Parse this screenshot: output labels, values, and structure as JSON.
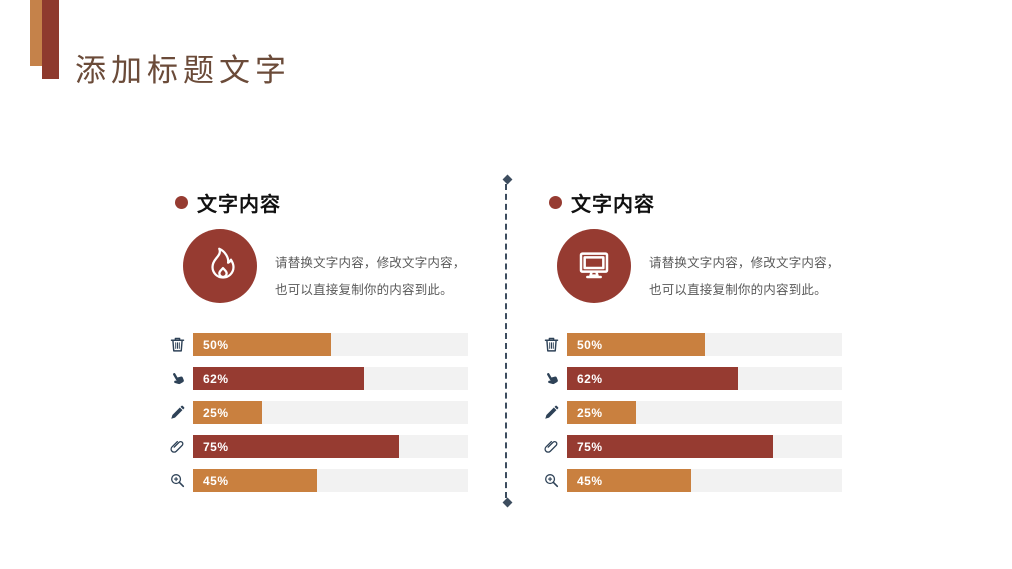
{
  "slide": {
    "title": "添加标题文字"
  },
  "colors": {
    "accent_orange": "#C9803F",
    "accent_dark_red": "#963B31",
    "title_brown": "#6B4B39",
    "bar_icon_slate": "#2E4257",
    "bar_track_gray": "#F2F2F2",
    "body_text_gray": "#595959",
    "deco_orange": "#C5824A",
    "deco_red": "#8E3A2E",
    "divider_slate": "#3D4D5F"
  },
  "columns": [
    {
      "heading": "文字内容",
      "circle_icon": "flame-icon",
      "body": "请替换文字内容，修改文字内容，也可以直接复制你的内容到此。",
      "bars": [
        {
          "icon": "trash-icon",
          "label": "50%",
          "value": 50,
          "color": "#C9803F"
        },
        {
          "icon": "hand-pointer-icon",
          "label": "62%",
          "value": 62,
          "color": "#963B31"
        },
        {
          "icon": "pencil-icon",
          "label": "25%",
          "value": 25,
          "color": "#C9803F"
        },
        {
          "icon": "paperclip-icon",
          "label": "75%",
          "value": 75,
          "color": "#963B31"
        },
        {
          "icon": "magnifier-plus-icon",
          "label": "45%",
          "value": 45,
          "color": "#C9803F"
        }
      ]
    },
    {
      "heading": "文字内容",
      "circle_icon": "monitor-icon",
      "body": "请替换文字内容，修改文字内容，也可以直接复制你的内容到此。",
      "bars": [
        {
          "icon": "trash-icon",
          "label": "50%",
          "value": 50,
          "color": "#C9803F"
        },
        {
          "icon": "hand-pointer-icon",
          "label": "62%",
          "value": 62,
          "color": "#963B31"
        },
        {
          "icon": "pencil-icon",
          "label": "25%",
          "value": 25,
          "color": "#C9803F"
        },
        {
          "icon": "paperclip-icon",
          "label": "75%",
          "value": 75,
          "color": "#963B31"
        },
        {
          "icon": "magnifier-plus-icon",
          "label": "45%",
          "value": 45,
          "color": "#C9803F"
        }
      ]
    }
  ],
  "chart_data": [
    {
      "type": "bar",
      "orientation": "horizontal",
      "title": "文字内容 (left column)",
      "categories": [
        "trash",
        "hand-pointer",
        "pencil",
        "paperclip",
        "magnifier-plus"
      ],
      "values": [
        50,
        62,
        25,
        75,
        45
      ],
      "value_labels": [
        "50%",
        "62%",
        "25%",
        "75%",
        "45%"
      ],
      "xlim": [
        0,
        100
      ],
      "bar_colors": [
        "#C9803F",
        "#963B31",
        "#C9803F",
        "#963B31",
        "#C9803F"
      ],
      "grid": false,
      "legend": false
    },
    {
      "type": "bar",
      "orientation": "horizontal",
      "title": "文字内容 (right column)",
      "categories": [
        "trash",
        "hand-pointer",
        "pencil",
        "paperclip",
        "magnifier-plus"
      ],
      "values": [
        50,
        62,
        25,
        75,
        45
      ],
      "value_labels": [
        "50%",
        "62%",
        "25%",
        "75%",
        "45%"
      ],
      "xlim": [
        0,
        100
      ],
      "bar_colors": [
        "#C9803F",
        "#963B31",
        "#C9803F",
        "#963B31",
        "#C9803F"
      ],
      "grid": false,
      "legend": false
    }
  ]
}
